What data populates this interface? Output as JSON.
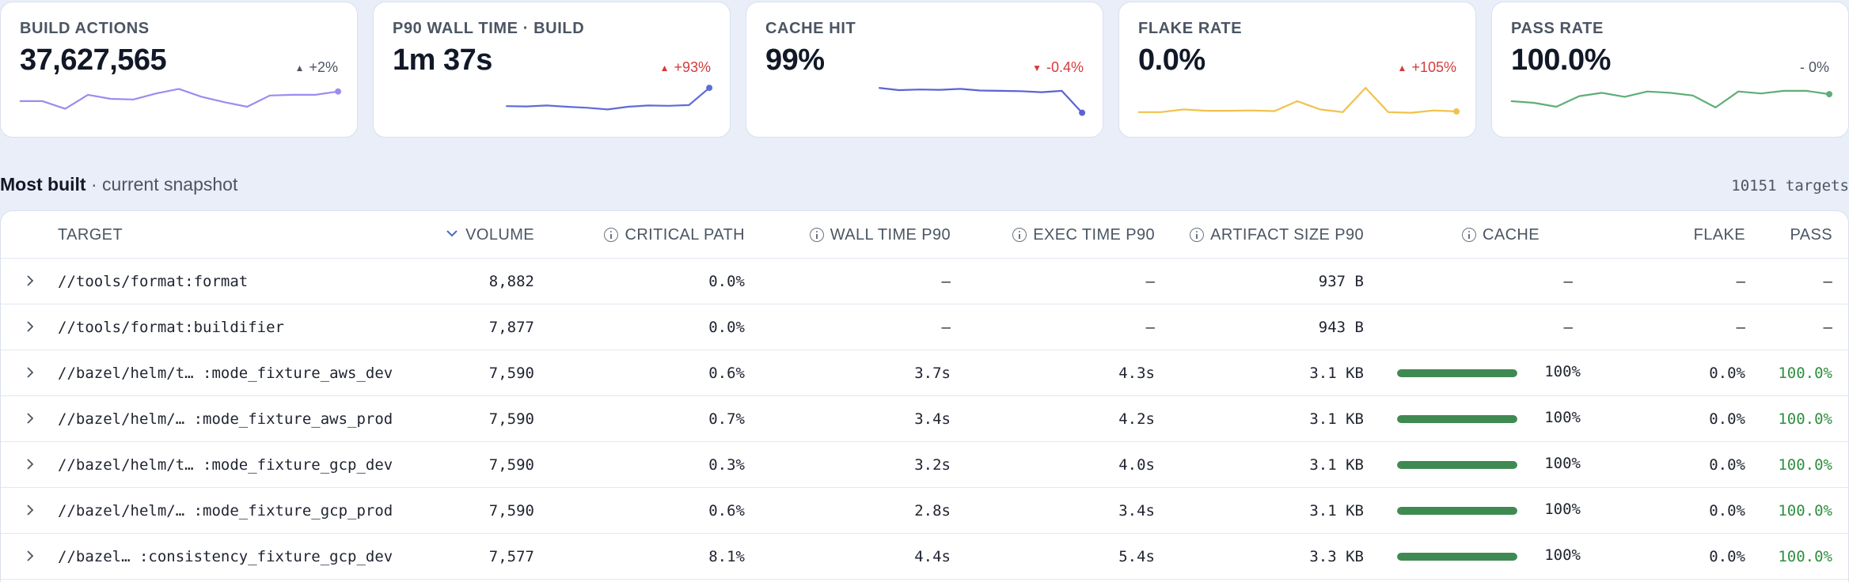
{
  "cards": [
    {
      "title": "BUILD ACTIONS",
      "value": "37,627,565",
      "delta": "+2%",
      "delta_dir": "up",
      "delta_tone": "neutral",
      "color": "#9b8cf0",
      "spark": [
        0.55,
        0.55,
        0.32,
        0.74,
        0.62,
        0.6,
        0.78,
        0.92,
        0.68,
        0.52,
        0.38,
        0.72,
        0.74,
        0.74,
        0.84
      ]
    },
    {
      "title": "P90 WALL TIME · BUILD",
      "value": "1m 37s",
      "delta": "+93%",
      "delta_dir": "up",
      "delta_tone": "red",
      "color": "#5f6bd8",
      "spark": [
        0.4,
        0.39,
        0.42,
        0.38,
        0.35,
        0.3,
        0.38,
        0.42,
        0.41,
        0.43,
        0.95
      ]
    },
    {
      "title": "CACHE HIT",
      "value": "99%",
      "delta": "-0.4%",
      "delta_dir": "down",
      "delta_tone": "red",
      "color": "#5b62d6",
      "spark": [
        0.95,
        0.88,
        0.9,
        0.89,
        0.92,
        0.87,
        0.86,
        0.85,
        0.82,
        0.86,
        0.2
      ]
    },
    {
      "title": "FLAKE RATE",
      "value": "0.0%",
      "delta": "+105%",
      "delta_dir": "up",
      "delta_tone": "red",
      "color": "#f1c24b",
      "spark": [
        0.22,
        0.22,
        0.3,
        0.26,
        0.26,
        0.27,
        0.25,
        0.55,
        0.3,
        0.22,
        0.95,
        0.22,
        0.2,
        0.27,
        0.24
      ]
    },
    {
      "title": "PASS RATE",
      "value": "100.0%",
      "delta": "- 0%",
      "delta_dir": "none",
      "delta_tone": "neutral",
      "color": "#5eae76",
      "spark": [
        0.55,
        0.5,
        0.38,
        0.7,
        0.8,
        0.68,
        0.84,
        0.8,
        0.72,
        0.36,
        0.84,
        0.78,
        0.86,
        0.86,
        0.76
      ]
    }
  ],
  "section": {
    "title": "Most built",
    "subtitle": " · current snapshot",
    "count": "10151 targets"
  },
  "table": {
    "columns": {
      "target": "TARGET",
      "volume": "VOLUME",
      "critical_path": "CRITICAL PATH",
      "wall_time": "WALL TIME P90",
      "exec_time": "EXEC TIME P90",
      "artifact": "ARTIFACT SIZE P90",
      "cache": "CACHE",
      "flake": "FLAKE",
      "pass": "PASS"
    },
    "rows": [
      {
        "target": "//tools/format:format",
        "volume": "8,882",
        "critical_path": "0.0%",
        "wall": "—",
        "exec": "—",
        "artifact": "937 B",
        "cache": "—",
        "cache_frac": null,
        "flake": "—",
        "pass": "—",
        "pass_green": false
      },
      {
        "target": "//tools/format:buildifier",
        "volume": "7,877",
        "critical_path": "0.0%",
        "wall": "—",
        "exec": "—",
        "artifact": "943 B",
        "cache": "—",
        "cache_frac": null,
        "flake": "—",
        "pass": "—",
        "pass_green": false
      },
      {
        "target": "//bazel/helm/t… :mode_fixture_aws_dev",
        "volume": "7,590",
        "critical_path": "0.6%",
        "wall": "3.7s",
        "exec": "4.3s",
        "artifact": "3.1 KB",
        "cache": "100%",
        "cache_frac": 1.0,
        "flake": "0.0%",
        "pass": "100.0%",
        "pass_green": true
      },
      {
        "target": "//bazel/helm/… :mode_fixture_aws_prod",
        "volume": "7,590",
        "critical_path": "0.7%",
        "wall": "3.4s",
        "exec": "4.2s",
        "artifact": "3.1 KB",
        "cache": "100%",
        "cache_frac": 1.0,
        "flake": "0.0%",
        "pass": "100.0%",
        "pass_green": true
      },
      {
        "target": "//bazel/helm/t… :mode_fixture_gcp_dev",
        "volume": "7,590",
        "critical_path": "0.3%",
        "wall": "3.2s",
        "exec": "4.0s",
        "artifact": "3.1 KB",
        "cache": "100%",
        "cache_frac": 1.0,
        "flake": "0.0%",
        "pass": "100.0%",
        "pass_green": true
      },
      {
        "target": "//bazel/helm/… :mode_fixture_gcp_prod",
        "volume": "7,590",
        "critical_path": "0.6%",
        "wall": "2.8s",
        "exec": "3.4s",
        "artifact": "3.1 KB",
        "cache": "100%",
        "cache_frac": 1.0,
        "flake": "0.0%",
        "pass": "100.0%",
        "pass_green": true
      },
      {
        "target": "//bazel… :consistency_fixture_gcp_dev",
        "volume": "7,577",
        "critical_path": "8.1%",
        "wall": "4.4s",
        "exec": "5.4s",
        "artifact": "3.3 KB",
        "cache": "100%",
        "cache_frac": 1.0,
        "flake": "0.0%",
        "pass": "100.0%",
        "pass_green": true
      }
    ]
  }
}
